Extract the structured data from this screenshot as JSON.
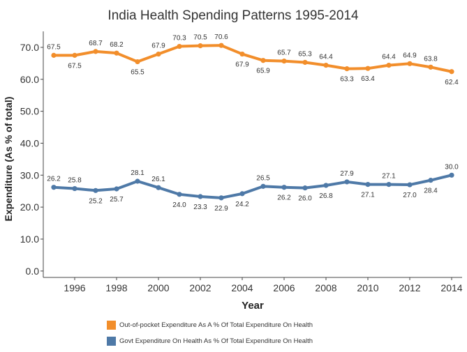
{
  "chart_data": {
    "type": "line",
    "title": "India Health Spending Patterns 1995-2014",
    "xlabel": "Year",
    "ylabel": "Expenditure (As % of total)",
    "xlim": [
      1994.5,
      2014.5
    ],
    "ylim": [
      -2,
      75
    ],
    "x": [
      1995,
      1996,
      1997,
      1998,
      1999,
      2000,
      2001,
      2002,
      2003,
      2004,
      2005,
      2006,
      2007,
      2008,
      2009,
      2010,
      2011,
      2012,
      2013,
      2014
    ],
    "x_ticks": [
      "1996",
      "1998",
      "2000",
      "2002",
      "2004",
      "2006",
      "2008",
      "2010",
      "2012",
      "2014"
    ],
    "y_ticks": [
      "0.0",
      "10.0",
      "20.0",
      "30.0",
      "40.0",
      "50.0",
      "60.0",
      "70.0"
    ],
    "grid": false,
    "legend_position": "bottom",
    "series": [
      {
        "name": "Out-of-pocket Expenditure As A % Of Total Expenditure On Health",
        "color": "#f28e2b",
        "values": [
          67.5,
          67.5,
          68.7,
          68.2,
          65.5,
          67.9,
          70.3,
          70.5,
          70.6,
          67.9,
          65.9,
          65.7,
          65.3,
          64.4,
          63.3,
          63.4,
          64.4,
          64.9,
          63.8,
          62.4
        ],
        "labels": [
          "67.5",
          "67.5",
          "68.7",
          "68.2",
          "65.5",
          "67.9",
          "70.3",
          "70.5",
          "70.6",
          "67.9",
          "65.9",
          "65.7",
          "65.3",
          "64.4",
          "63.3",
          "63.4",
          "64.4",
          "64.9",
          "63.8",
          "62.4"
        ]
      },
      {
        "name": "Govt Expenditure On Health As % Of Total Expenditure On Health",
        "color": "#4e79a7",
        "values": [
          26.2,
          25.8,
          25.2,
          25.7,
          28.1,
          26.1,
          24.0,
          23.3,
          22.9,
          24.2,
          26.5,
          26.2,
          26.0,
          26.8,
          27.9,
          27.1,
          27.1,
          27.0,
          28.4,
          30.0
        ],
        "labels": [
          "26.2",
          "25.8",
          "25.2",
          "25.7",
          "28.1",
          "26.1",
          "24.0",
          "23.3",
          "22.9",
          "24.2",
          "26.5",
          "26.2",
          "26.0",
          "26.8",
          "27.9",
          "27.1",
          "27.1",
          "27.0",
          "28.4",
          "30.0"
        ]
      }
    ]
  }
}
